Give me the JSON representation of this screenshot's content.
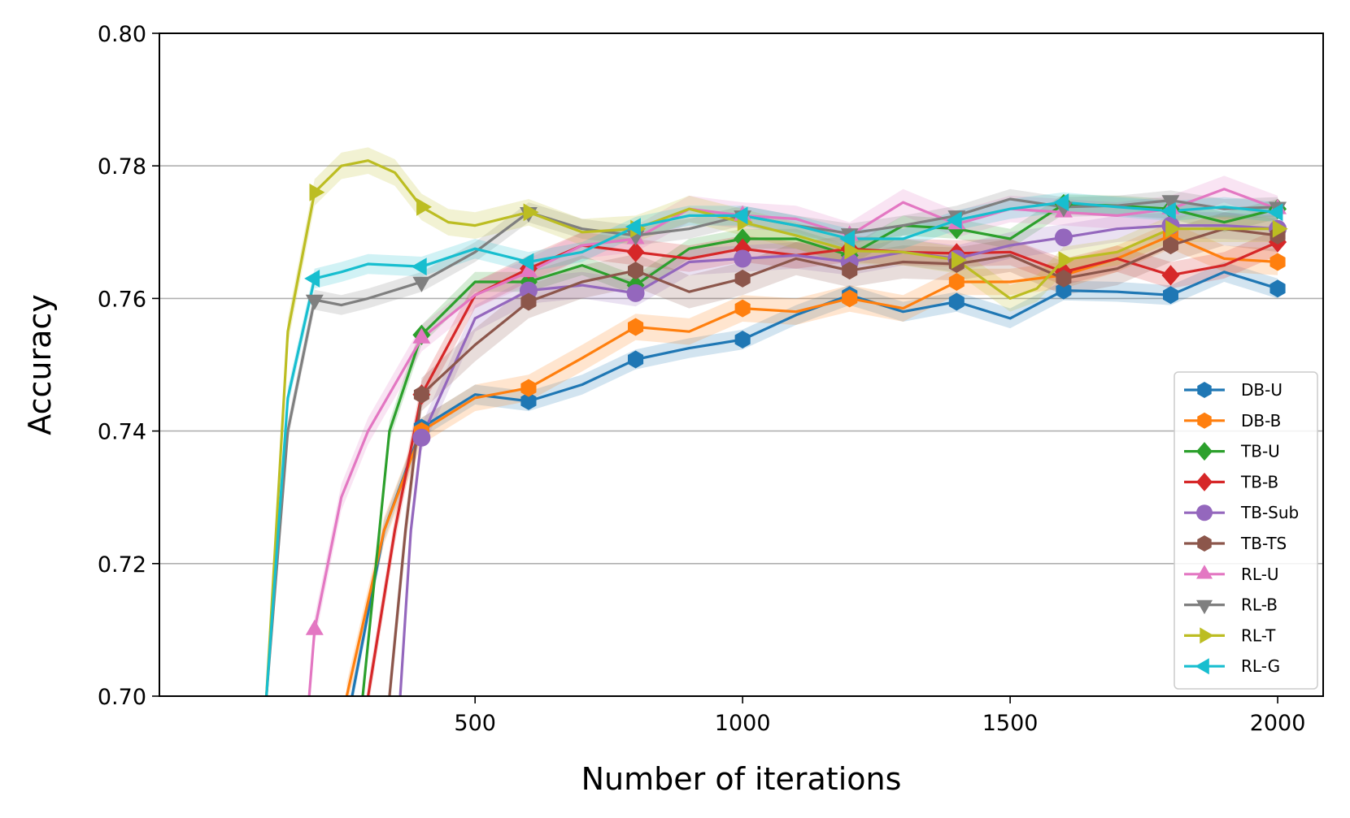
{
  "chart_data": {
    "type": "line",
    "xlabel": "Number of iterations",
    "ylabel": "Accuracy",
    "xlim": [
      -90,
      2085
    ],
    "ylim": [
      0.7,
      0.8
    ],
    "xticks": [
      500,
      1000,
      1500,
      2000
    ],
    "xtick_labels": [
      "500",
      "1000",
      "1500",
      "2000"
    ],
    "yticks": [
      0.7,
      0.72,
      0.74,
      0.76,
      0.78,
      0.8
    ],
    "ytick_labels": [
      "0.70",
      "0.72",
      "0.74",
      "0.76",
      "0.78",
      "0.80"
    ],
    "grid": "horizontal",
    "legend_position": "lower-right",
    "marker_x": [
      200,
      400,
      600,
      800,
      1000,
      1200,
      1400,
      1600,
      1800,
      2000
    ],
    "series": [
      {
        "name": "DB-U",
        "color": "#1f77b4",
        "marker": "hexagon",
        "band": 0.0015,
        "x": [
          270,
          330,
          400,
          500,
          600,
          700,
          800,
          900,
          1000,
          1100,
          1200,
          1300,
          1400,
          1500,
          1600,
          1700,
          1800,
          1900,
          2000
        ],
        "y": [
          0.7,
          0.725,
          0.7405,
          0.7455,
          0.7445,
          0.747,
          0.7508,
          0.7525,
          0.7538,
          0.7575,
          0.7605,
          0.758,
          0.7595,
          0.757,
          0.7612,
          0.761,
          0.7605,
          0.764,
          0.7615
        ]
      },
      {
        "name": "DB-B",
        "color": "#ff7f0e",
        "marker": "hexagon",
        "band": 0.002,
        "x": [
          260,
          330,
          400,
          500,
          600,
          700,
          800,
          900,
          1000,
          1100,
          1200,
          1300,
          1400,
          1500,
          1600,
          1700,
          1800,
          1900,
          2000
        ],
        "y": [
          0.7,
          0.725,
          0.74,
          0.745,
          0.7465,
          0.751,
          0.7557,
          0.755,
          0.7585,
          0.758,
          0.76,
          0.7585,
          0.7625,
          0.7625,
          0.7635,
          0.766,
          0.7695,
          0.766,
          0.7655
        ]
      },
      {
        "name": "TB-U",
        "color": "#2ca02c",
        "marker": "diamond",
        "band": 0.0015,
        "x": [
          290,
          340,
          400,
          500,
          600,
          700,
          800,
          900,
          1000,
          1100,
          1200,
          1300,
          1400,
          1500,
          1600,
          1700,
          1800,
          1900,
          2000
        ],
        "y": [
          0.7,
          0.74,
          0.7545,
          0.7625,
          0.7625,
          0.765,
          0.762,
          0.7675,
          0.769,
          0.769,
          0.7665,
          0.771,
          0.7705,
          0.769,
          0.7742,
          0.774,
          0.7735,
          0.7715,
          0.7735
        ]
      },
      {
        "name": "TB-B",
        "color": "#d62728",
        "marker": "diamond",
        "band": 0.002,
        "x": [
          300,
          350,
          400,
          500,
          600,
          700,
          800,
          900,
          1000,
          1100,
          1200,
          1300,
          1400,
          1500,
          1600,
          1700,
          1800,
          1900,
          2000
        ],
        "y": [
          0.7,
          0.725,
          0.7455,
          0.7605,
          0.7645,
          0.768,
          0.767,
          0.766,
          0.7675,
          0.7665,
          0.7675,
          0.767,
          0.7668,
          0.767,
          0.764,
          0.766,
          0.7635,
          0.765,
          0.7685
        ]
      },
      {
        "name": "TB-Sub",
        "color": "#9467bd",
        "marker": "circle",
        "band": 0.002,
        "x": [
          360,
          380,
          400,
          500,
          600,
          700,
          800,
          900,
          1000,
          1100,
          1200,
          1300,
          1400,
          1500,
          1600,
          1700,
          1800,
          1900,
          2000
        ],
        "y": [
          0.7,
          0.725,
          0.739,
          0.757,
          0.7612,
          0.762,
          0.7608,
          0.7655,
          0.766,
          0.7665,
          0.7655,
          0.767,
          0.766,
          0.768,
          0.7692,
          0.7705,
          0.771,
          0.771,
          0.7705
        ]
      },
      {
        "name": "TB-TS",
        "color": "#8c564b",
        "marker": "hexagon",
        "band": 0.0025,
        "x": [
          340,
          370,
          400,
          500,
          600,
          700,
          800,
          900,
          1000,
          1100,
          1200,
          1300,
          1400,
          1500,
          1600,
          1700,
          1800,
          1900,
          2000
        ],
        "y": [
          0.7,
          0.725,
          0.7455,
          0.753,
          0.7595,
          0.7625,
          0.7642,
          0.761,
          0.763,
          0.766,
          0.7642,
          0.7655,
          0.7652,
          0.7665,
          0.763,
          0.7645,
          0.768,
          0.7705,
          0.7695
        ]
      },
      {
        "name": "RL-U",
        "color": "#e377c2",
        "marker": "triangle-up",
        "band": 0.002,
        "x": [
          190,
          200,
          250,
          300,
          400,
          500,
          600,
          700,
          800,
          900,
          1000,
          1100,
          1200,
          1300,
          1400,
          1500,
          1600,
          1700,
          1800,
          1900,
          2000
        ],
        "y": [
          0.7,
          0.71,
          0.73,
          0.74,
          0.754,
          0.7605,
          0.764,
          0.768,
          0.769,
          0.7735,
          0.7725,
          0.772,
          0.7695,
          0.7745,
          0.7712,
          0.7735,
          0.773,
          0.7725,
          0.7735,
          0.7765,
          0.7735
        ]
      },
      {
        "name": "RL-B",
        "color": "#7f7f7f",
        "marker": "triangle-down",
        "band": 0.0015,
        "x": [
          110,
          150,
          200,
          250,
          300,
          400,
          500,
          600,
          700,
          800,
          900,
          1000,
          1100,
          1200,
          1300,
          1400,
          1500,
          1600,
          1700,
          1800,
          1900,
          2000
        ],
        "y": [
          0.7,
          0.74,
          0.7598,
          0.759,
          0.76,
          0.7625,
          0.767,
          0.773,
          0.7705,
          0.7695,
          0.7705,
          0.7725,
          0.771,
          0.7698,
          0.771,
          0.7725,
          0.775,
          0.7738,
          0.774,
          0.7748,
          0.7735,
          0.7738
        ]
      },
      {
        "name": "RL-T",
        "color": "#bcbd22",
        "marker": "triangle-right",
        "band": 0.002,
        "x": [
          110,
          150,
          200,
          250,
          300,
          350,
          400,
          450,
          500,
          600,
          700,
          800,
          900,
          1000,
          1100,
          1200,
          1300,
          1400,
          1500,
          1550,
          1600,
          1700,
          1800,
          1900,
          2000
        ],
        "y": [
          0.7,
          0.755,
          0.776,
          0.78,
          0.7808,
          0.779,
          0.7738,
          0.7715,
          0.771,
          0.773,
          0.77,
          0.7705,
          0.7735,
          0.7715,
          0.7695,
          0.7672,
          0.767,
          0.7658,
          0.76,
          0.7615,
          0.7658,
          0.767,
          0.7705,
          0.7705,
          0.7705
        ]
      },
      {
        "name": "RL-G",
        "color": "#17becf",
        "marker": "triangle-left",
        "band": 0.0015,
        "x": [
          110,
          150,
          200,
          250,
          300,
          400,
          500,
          600,
          700,
          800,
          900,
          1000,
          1100,
          1200,
          1300,
          1400,
          1500,
          1600,
          1700,
          1800,
          1900,
          2000
        ],
        "y": [
          0.7,
          0.745,
          0.763,
          0.764,
          0.7652,
          0.7648,
          0.7675,
          0.7655,
          0.767,
          0.7708,
          0.7725,
          0.7725,
          0.771,
          0.769,
          0.769,
          0.7718,
          0.7735,
          0.7745,
          0.7738,
          0.7732,
          0.7738,
          0.773
        ]
      }
    ]
  }
}
